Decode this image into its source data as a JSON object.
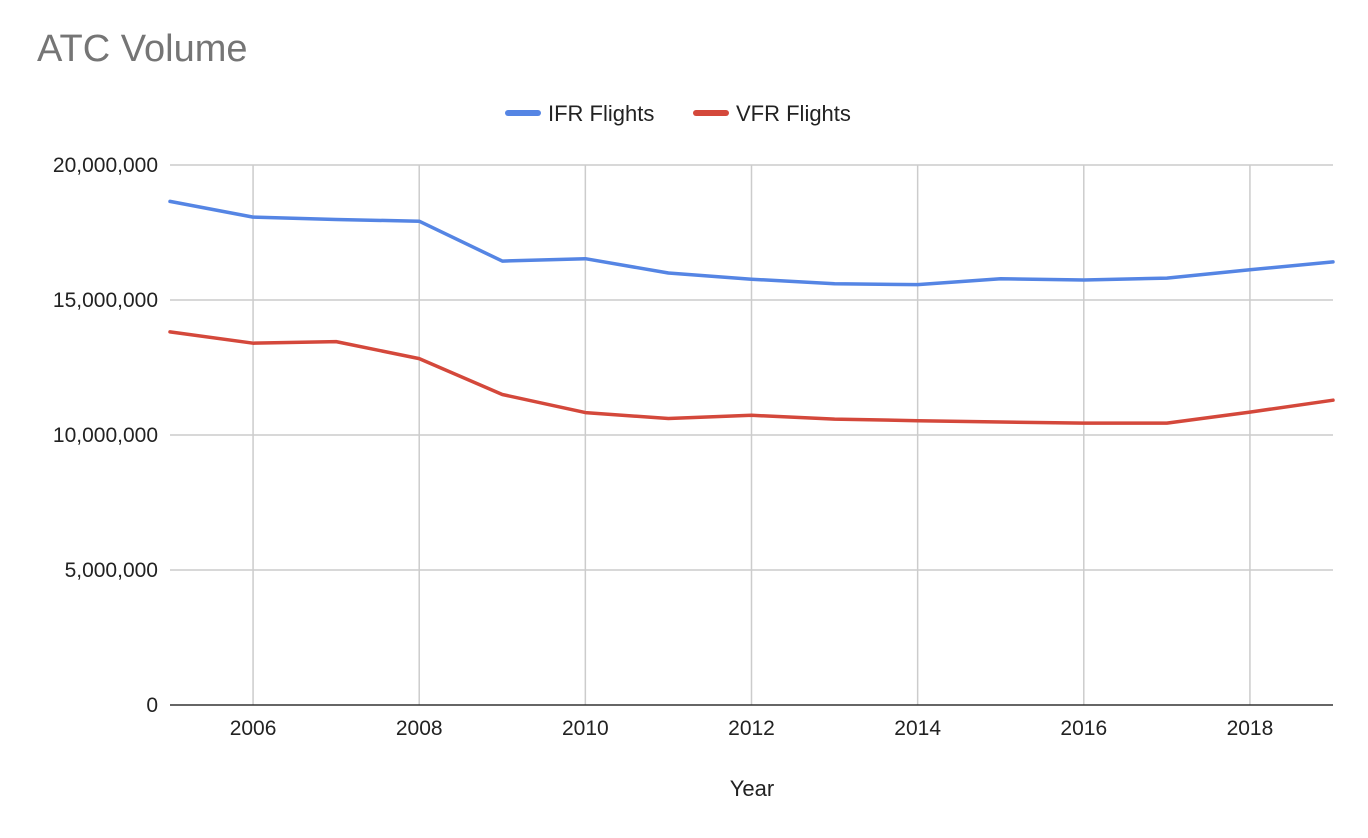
{
  "chart_data": {
    "type": "line",
    "title": "ATC Volume",
    "xlabel": "Year",
    "ylabel": "",
    "x": [
      2005,
      2006,
      2007,
      2008,
      2009,
      2010,
      2011,
      2012,
      2013,
      2014,
      2015,
      2016,
      2017,
      2018,
      2019
    ],
    "xlim": [
      2005,
      2019
    ],
    "ylim": [
      0,
      20000000
    ],
    "x_ticks": [
      2006,
      2008,
      2010,
      2012,
      2014,
      2016,
      2018
    ],
    "x_tick_labels": [
      "2006",
      "2008",
      "2010",
      "2012",
      "2014",
      "2016",
      "2018"
    ],
    "y_ticks": [
      0,
      5000000,
      10000000,
      15000000,
      20000000
    ],
    "y_tick_labels": [
      "0",
      "5,000,000",
      "10,000,000",
      "15,000,000",
      "20,000,000"
    ],
    "grid": true,
    "legend_position": "top-center",
    "series": [
      {
        "name": "IFR Flights",
        "color": "#5585e4",
        "values": [
          18650000,
          18070000,
          17980000,
          17920000,
          16440000,
          16530000,
          16000000,
          15770000,
          15600000,
          15570000,
          15790000,
          15740000,
          15810000,
          16120000,
          16410000
        ]
      },
      {
        "name": "VFR Flights",
        "color": "#d4483b",
        "values": [
          13820000,
          13400000,
          13460000,
          12830000,
          11500000,
          10830000,
          10610000,
          10730000,
          10590000,
          10530000,
          10480000,
          10440000,
          10440000,
          10850000,
          11290000
        ]
      }
    ]
  }
}
